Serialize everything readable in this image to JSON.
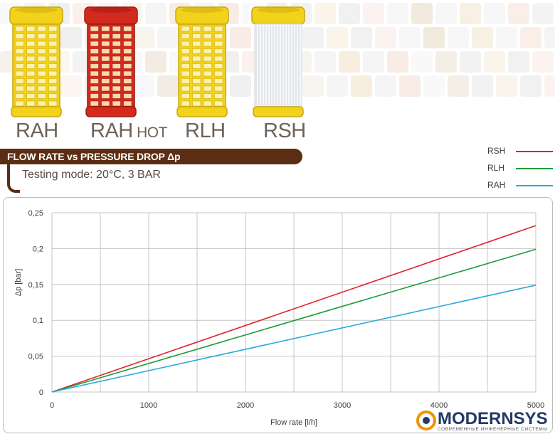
{
  "products": [
    {
      "name": "RAH",
      "suffix": "",
      "color": "#f2d21a",
      "type": "mesh"
    },
    {
      "name": "RAH",
      "suffix": "HOT",
      "color": "#d42a1d",
      "type": "mesh"
    },
    {
      "name": "RLH",
      "suffix": "",
      "color": "#f2d21a",
      "type": "mesh"
    },
    {
      "name": "RSH",
      "suffix": "",
      "color": "#f2d21a",
      "type": "pleated"
    }
  ],
  "header": {
    "title": "FLOW RATE vs PRESSURE DROP Δp",
    "subtitle": "Testing mode: 20°C, 3 BAR"
  },
  "logo": {
    "text": "MODERNSYS",
    "tagline": "СОВРЕМЕННЫЕ ИНЖЕНЕРНЫЕ СИСТЕМЫ"
  },
  "colors": {
    "header_bar": "#5b2d12",
    "RSH": "#e0212b",
    "RLH": "#1e9b3a",
    "RAH": "#2ea8dc"
  },
  "chart_data": {
    "type": "line",
    "xlabel": "Flow rate [l/h]",
    "ylabel": "Δp [bar]",
    "xlim": [
      0,
      5000
    ],
    "ylim": [
      0,
      0.25
    ],
    "x_ticks": [
      "0",
      "1000",
      "2000",
      "3000",
      "4000",
      "5000"
    ],
    "y_ticks": [
      "0",
      "0,05",
      "0,1",
      "0,15",
      "0,2",
      "0,25"
    ],
    "grid": true,
    "legend_position": "top-right",
    "series": [
      {
        "name": "RSH",
        "color": "#e0212b",
        "x": [
          0,
          5000
        ],
        "y": [
          0,
          0.232
        ]
      },
      {
        "name": "RLH",
        "color": "#1e9b3a",
        "x": [
          0,
          5000
        ],
        "y": [
          0,
          0.199
        ]
      },
      {
        "name": "RAH",
        "color": "#2ea8dc",
        "x": [
          0,
          5000
        ],
        "y": [
          0,
          0.149
        ]
      }
    ]
  }
}
